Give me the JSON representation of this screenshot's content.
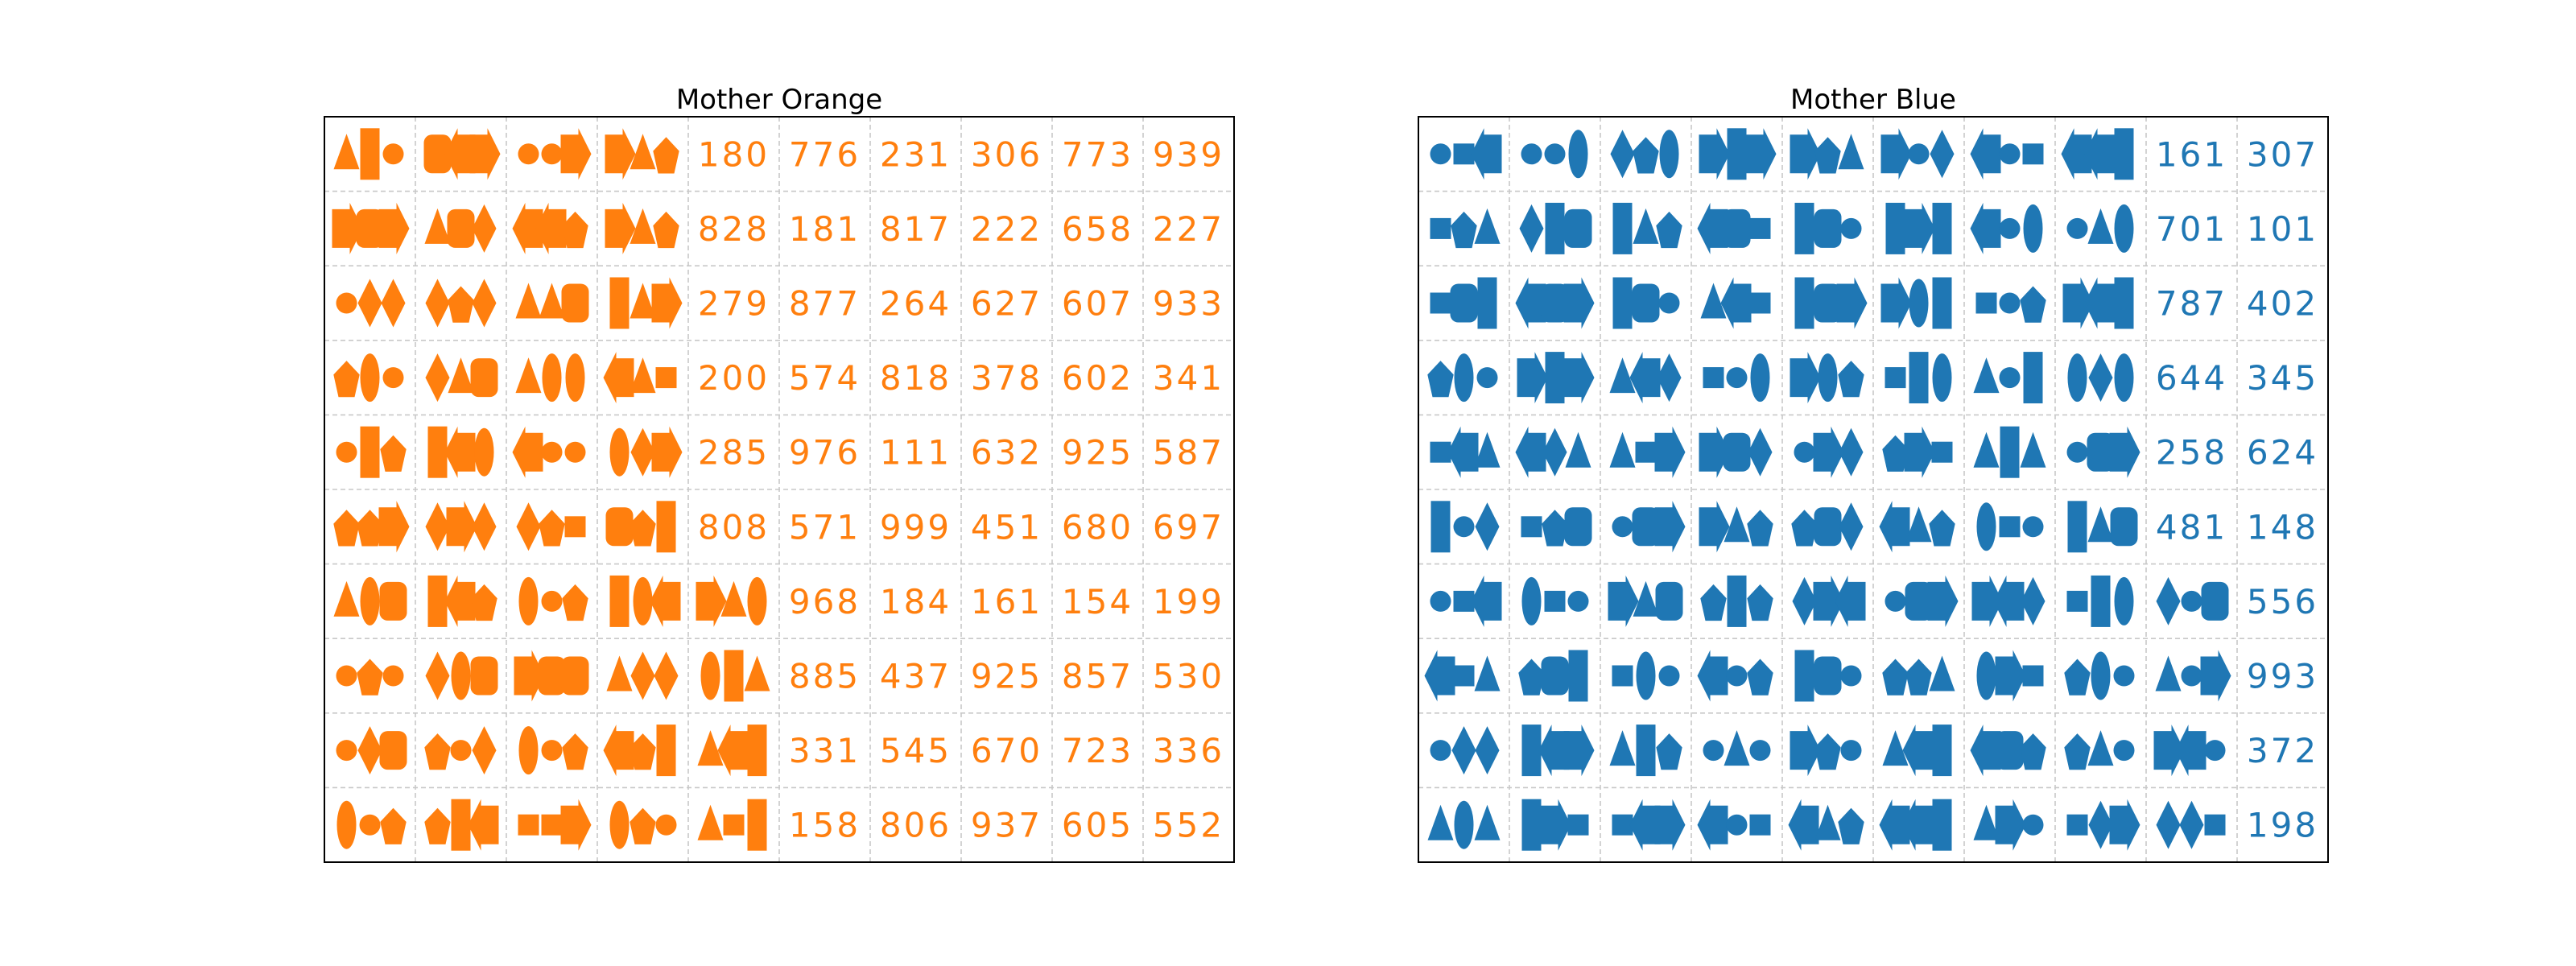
{
  "chart_data": [
    {
      "type": "table",
      "title": "Mother Orange",
      "color": "#ff7f0e",
      "grid": true,
      "rows": [
        [
          [
            "triangle",
            "rectangle",
            "circle"
          ],
          [
            "rounded_rect",
            "left_arrow",
            "right_arrow"
          ],
          [
            "circle",
            "circle",
            "right_arrow"
          ],
          [
            "right_arrow",
            "triangle",
            "pentagon"
          ],
          "180",
          "776",
          "231",
          "306",
          "773",
          "939"
        ],
        [
          [
            "right_arrow",
            "rounded_rect",
            "right_arrow"
          ],
          [
            "triangle",
            "rounded_rect",
            "diamond"
          ],
          [
            "left_arrow",
            "left_arrow",
            "pentagon"
          ],
          [
            "right_arrow",
            "triangle",
            "pentagon"
          ],
          "828",
          "181",
          "817",
          "222",
          "658",
          "227"
        ],
        [
          [
            "circle",
            "diamond",
            "diamond"
          ],
          [
            "diamond",
            "pentagon",
            "diamond"
          ],
          [
            "triangle",
            "triangle",
            "rounded_rect"
          ],
          [
            "rectangle",
            "triangle",
            "right_arrow"
          ],
          "279",
          "877",
          "264",
          "627",
          "607",
          "933"
        ],
        [
          [
            "pentagon",
            "ellipse",
            "circle"
          ],
          [
            "diamond",
            "triangle",
            "rounded_rect"
          ],
          [
            "triangle",
            "ellipse",
            "ellipse"
          ],
          [
            "left_arrow",
            "triangle",
            "square"
          ],
          "200",
          "574",
          "818",
          "378",
          "602",
          "341"
        ],
        [
          [
            "circle",
            "rectangle",
            "pentagon"
          ],
          [
            "rectangle",
            "left_arrow",
            "ellipse"
          ],
          [
            "left_arrow",
            "circle",
            "circle"
          ],
          [
            "ellipse",
            "diamond",
            "right_arrow"
          ],
          "285",
          "976",
          "111",
          "632",
          "925",
          "587"
        ],
        [
          [
            "pentagon",
            "pentagon",
            "right_arrow"
          ],
          [
            "diamond",
            "right_arrow",
            "diamond"
          ],
          [
            "diamond",
            "pentagon",
            "square"
          ],
          [
            "rounded_rect",
            "pentagon",
            "rectangle"
          ],
          "808",
          "571",
          "999",
          "451",
          "680",
          "697"
        ],
        [
          [
            "triangle",
            "ellipse",
            "rounded_rect"
          ],
          [
            "rectangle",
            "left_arrow",
            "pentagon"
          ],
          [
            "ellipse",
            "circle",
            "pentagon"
          ],
          [
            "rectangle",
            "ellipse",
            "left_arrow"
          ],
          [
            "right_arrow",
            "triangle",
            "ellipse"
          ],
          "968",
          "184",
          "161",
          "154",
          "199"
        ],
        [
          [
            "circle",
            "pentagon",
            "circle"
          ],
          [
            "diamond",
            "ellipse",
            "rounded_rect"
          ],
          [
            "right_arrow",
            "rounded_rect",
            "rounded_rect"
          ],
          [
            "triangle",
            "diamond",
            "diamond"
          ],
          [
            "ellipse",
            "rectangle",
            "triangle"
          ],
          "885",
          "437",
          "925",
          "857",
          "530"
        ],
        [
          [
            "circle",
            "diamond",
            "rounded_rect"
          ],
          [
            "pentagon",
            "circle",
            "diamond"
          ],
          [
            "ellipse",
            "circle",
            "pentagon"
          ],
          [
            "left_arrow",
            "pentagon",
            "rectangle"
          ],
          [
            "triangle",
            "left_arrow",
            "rectangle"
          ],
          "331",
          "545",
          "670",
          "723",
          "336"
        ],
        [
          [
            "ellipse",
            "circle",
            "pentagon"
          ],
          [
            "pentagon",
            "rectangle",
            "left_arrow"
          ],
          [
            "square",
            "square",
            "right_arrow"
          ],
          [
            "ellipse",
            "pentagon",
            "circle"
          ],
          [
            "triangle",
            "square",
            "rectangle"
          ],
          "158",
          "806",
          "937",
          "605",
          "552"
        ]
      ]
    },
    {
      "type": "table",
      "title": "Mother Blue",
      "color": "#1f77b4",
      "grid": true,
      "rows": [
        [
          [
            "circle",
            "square",
            "left_arrow"
          ],
          [
            "circle",
            "circle",
            "ellipse"
          ],
          [
            "diamond",
            "pentagon",
            "ellipse"
          ],
          [
            "right_arrow",
            "rectangle",
            "right_arrow"
          ],
          [
            "right_arrow",
            "pentagon",
            "triangle"
          ],
          [
            "right_arrow",
            "circle",
            "diamond"
          ],
          [
            "left_arrow",
            "circle",
            "square"
          ],
          [
            "left_arrow",
            "left_arrow",
            "rectangle"
          ],
          "161",
          "307"
        ],
        [
          [
            "square",
            "pentagon",
            "triangle"
          ],
          [
            "diamond",
            "rectangle",
            "rounded_rect"
          ],
          [
            "rectangle",
            "triangle",
            "pentagon"
          ],
          [
            "left_arrow",
            "rounded_rect",
            "square"
          ],
          [
            "rectangle",
            "rounded_rect",
            "circle"
          ],
          [
            "rectangle",
            "right_arrow",
            "rectangle"
          ],
          [
            "left_arrow",
            "circle",
            "ellipse"
          ],
          [
            "circle",
            "triangle",
            "ellipse"
          ],
          "701",
          "101"
        ],
        [
          [
            "square",
            "rounded_rect",
            "rectangle"
          ],
          [
            "left_arrow",
            "rounded_rect",
            "right_arrow"
          ],
          [
            "rectangle",
            "rounded_rect",
            "circle"
          ],
          [
            "triangle",
            "left_arrow",
            "square"
          ],
          [
            "rectangle",
            "rounded_rect",
            "right_arrow"
          ],
          [
            "right_arrow",
            "ellipse",
            "rectangle"
          ],
          [
            "square",
            "circle",
            "pentagon"
          ],
          [
            "right_arrow",
            "left_arrow",
            "rectangle"
          ],
          "787",
          "402"
        ],
        [
          [
            "pentagon",
            "ellipse",
            "circle"
          ],
          [
            "right_arrow",
            "rectangle",
            "right_arrow"
          ],
          [
            "triangle",
            "left_arrow",
            "diamond"
          ],
          [
            "square",
            "circle",
            "ellipse"
          ],
          [
            "right_arrow",
            "ellipse",
            "pentagon"
          ],
          [
            "square",
            "rectangle",
            "ellipse"
          ],
          [
            "triangle",
            "circle",
            "rectangle"
          ],
          [
            "ellipse",
            "diamond",
            "ellipse"
          ],
          "644",
          "345"
        ],
        [
          [
            "square",
            "left_arrow",
            "triangle"
          ],
          [
            "left_arrow",
            "diamond",
            "triangle"
          ],
          [
            "triangle",
            "square",
            "right_arrow"
          ],
          [
            "right_arrow",
            "rounded_rect",
            "diamond"
          ],
          [
            "circle",
            "right_arrow",
            "diamond"
          ],
          [
            "pentagon",
            "right_arrow",
            "square"
          ],
          [
            "triangle",
            "rectangle",
            "triangle"
          ],
          [
            "circle",
            "rounded_rect",
            "right_arrow"
          ],
          "258",
          "624"
        ],
        [
          [
            "rectangle",
            "circle",
            "diamond"
          ],
          [
            "square",
            "pentagon",
            "rounded_rect"
          ],
          [
            "circle",
            "rounded_rect",
            "right_arrow"
          ],
          [
            "right_arrow",
            "triangle",
            "pentagon"
          ],
          [
            "pentagon",
            "rounded_rect",
            "diamond"
          ],
          [
            "left_arrow",
            "triangle",
            "pentagon"
          ],
          [
            "ellipse",
            "square",
            "circle"
          ],
          [
            "rectangle",
            "triangle",
            "rounded_rect"
          ],
          "481",
          "148"
        ],
        [
          [
            "circle",
            "square",
            "left_arrow"
          ],
          [
            "ellipse",
            "square",
            "circle"
          ],
          [
            "right_arrow",
            "triangle",
            "rounded_rect"
          ],
          [
            "pentagon",
            "rectangle",
            "pentagon"
          ],
          [
            "diamond",
            "right_arrow",
            "left_arrow"
          ],
          [
            "circle",
            "rounded_rect",
            "right_arrow"
          ],
          [
            "right_arrow",
            "left_arrow",
            "diamond"
          ],
          [
            "square",
            "rectangle",
            "ellipse"
          ],
          [
            "diamond",
            "circle",
            "rounded_rect"
          ],
          "556"
        ],
        [
          [
            "left_arrow",
            "square",
            "triangle"
          ],
          [
            "pentagon",
            "rounded_rect",
            "rectangle"
          ],
          [
            "square",
            "ellipse",
            "circle"
          ],
          [
            "left_arrow",
            "circle",
            "pentagon"
          ],
          [
            "rectangle",
            "rounded_rect",
            "circle"
          ],
          [
            "pentagon",
            "pentagon",
            "triangle"
          ],
          [
            "ellipse",
            "right_arrow",
            "square"
          ],
          [
            "pentagon",
            "ellipse",
            "circle"
          ],
          [
            "triangle",
            "circle",
            "right_arrow"
          ],
          "993"
        ],
        [
          [
            "circle",
            "diamond",
            "diamond"
          ],
          [
            "rectangle",
            "left_arrow",
            "right_arrow"
          ],
          [
            "triangle",
            "rectangle",
            "pentagon"
          ],
          [
            "circle",
            "triangle",
            "circle"
          ],
          [
            "right_arrow",
            "pentagon",
            "circle"
          ],
          [
            "triangle",
            "left_arrow",
            "rectangle"
          ],
          [
            "left_arrow",
            "rounded_rect",
            "pentagon"
          ],
          [
            "pentagon",
            "triangle",
            "circle"
          ],
          [
            "right_arrow",
            "left_arrow",
            "circle"
          ],
          "372"
        ],
        [
          [
            "triangle",
            "ellipse",
            "triangle"
          ],
          [
            "rectangle",
            "right_arrow",
            "square"
          ],
          [
            "square",
            "left_arrow",
            "right_arrow"
          ],
          [
            "left_arrow",
            "circle",
            "square"
          ],
          [
            "left_arrow",
            "triangle",
            "pentagon"
          ],
          [
            "left_arrow",
            "left_arrow",
            "rectangle"
          ],
          [
            "triangle",
            "right_arrow",
            "circle"
          ],
          [
            "square",
            "diamond",
            "right_arrow"
          ],
          [
            "diamond",
            "diamond",
            "square"
          ],
          "198"
        ]
      ]
    }
  ]
}
